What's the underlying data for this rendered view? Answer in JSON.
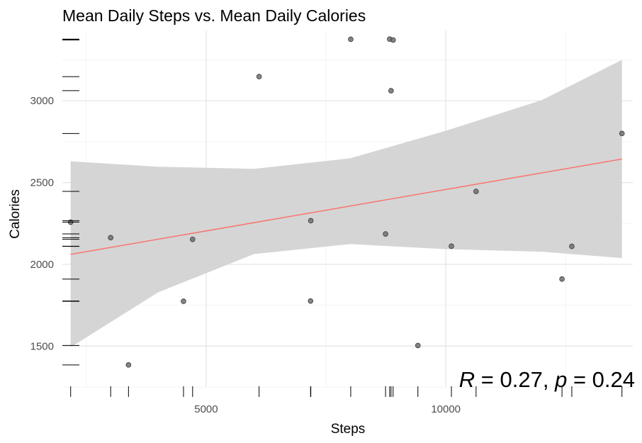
{
  "chart_data": {
    "type": "scatter",
    "title": "Mean Daily Steps vs. Mean Daily Calories",
    "xlabel": "Steps",
    "ylabel": "Calories",
    "xlim": [
      2000,
      13900
    ],
    "ylim": [
      1250,
      3430
    ],
    "x_ticks": [
      5000,
      10000
    ],
    "x_tick_labels": [
      "5000",
      "10000"
    ],
    "y_ticks": [
      1500,
      2000,
      2500,
      3000
    ],
    "y_tick_labels": [
      "1500",
      "2000",
      "2500",
      "3000"
    ],
    "grid": true,
    "rug": true,
    "points": [
      {
        "x": 2173,
        "y": 2258
      },
      {
        "x": 3008,
        "y": 2163
      },
      {
        "x": 3380,
        "y": 1385
      },
      {
        "x": 4527,
        "y": 1774
      },
      {
        "x": 4717,
        "y": 2153
      },
      {
        "x": 6104,
        "y": 3148
      },
      {
        "x": 7183,
        "y": 2267
      },
      {
        "x": 7178,
        "y": 1776
      },
      {
        "x": 8016,
        "y": 3376
      },
      {
        "x": 8742,
        "y": 2186
      },
      {
        "x": 8828,
        "y": 3377
      },
      {
        "x": 8857,
        "y": 3062
      },
      {
        "x": 8900,
        "y": 3372
      },
      {
        "x": 9417,
        "y": 1504
      },
      {
        "x": 10116,
        "y": 2111
      },
      {
        "x": 10631,
        "y": 2446
      },
      {
        "x": 12423,
        "y": 1910
      },
      {
        "x": 12628,
        "y": 2110
      },
      {
        "x": 13674,
        "y": 2800
      }
    ],
    "regression_line": {
      "color": "#f8766d",
      "x_start": 2173,
      "y_start": 2061,
      "x_end": 13674,
      "y_end": 2644
    },
    "confidence_band": {
      "color": "#d3d3d3",
      "x": [
        2173,
        4000,
        6000,
        8000,
        10000,
        12000,
        13674
      ],
      "lower": [
        1493,
        1829,
        2063,
        2124,
        2093,
        2077,
        2038
      ],
      "upper": [
        2630,
        2597,
        2584,
        2648,
        2817,
        3004,
        3250
      ]
    },
    "annotation": {
      "R_symbol": "R",
      "R_equals": " = 0.27, ",
      "p_symbol": "p",
      "p_equals": " = 0.24"
    }
  }
}
